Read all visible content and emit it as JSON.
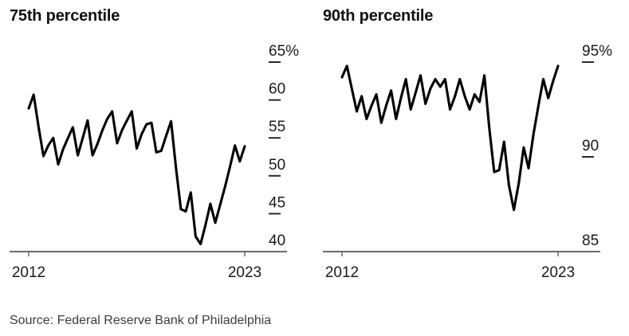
{
  "figure": {
    "source": "Source: Federal Reserve Bank of Philadelphia"
  },
  "colors": {
    "line": "#000000",
    "axis": "#6b6b6b",
    "tick_dash": "#2b2b2b",
    "label": "#1a1a1a",
    "title": "#111111",
    "source_text": "#3c3c3c"
  },
  "chart_data": [
    {
      "type": "line",
      "title": "75th percentile",
      "x_tick_labels": [
        "2012",
        "2023"
      ],
      "ylim": [
        40,
        65
      ],
      "y_ticks": [
        {
          "label": "65%",
          "value": 65
        },
        {
          "label": "60",
          "value": 60
        },
        {
          "label": "55",
          "value": 55
        },
        {
          "label": "50",
          "value": 50
        },
        {
          "label": "45",
          "value": 45
        },
        {
          "label": "40",
          "value": 40
        }
      ],
      "values": [
        58.9,
        60.7,
        56.5,
        52.6,
        54.0,
        55.0,
        51.5,
        53.5,
        55.0,
        56.4,
        52.7,
        55.0,
        57.3,
        52.7,
        54.2,
        56.0,
        57.5,
        58.5,
        54.3,
        56.0,
        57.3,
        58.5,
        53.6,
        55.5,
        56.8,
        57.0,
        53.1,
        53.3,
        55.3,
        57.2,
        51.0,
        45.6,
        45.3,
        47.8,
        42.0,
        41.0,
        43.5,
        46.3,
        43.8,
        46.2,
        48.6,
        51.2,
        54.0,
        51.9,
        53.9
      ]
    },
    {
      "type": "line",
      "title": "90th percentile",
      "x_tick_labels": [
        "2012",
        "2023"
      ],
      "ylim": [
        85,
        95
      ],
      "y_ticks": [
        {
          "label": "95%",
          "value": 95
        },
        {
          "label": "90",
          "value": 90
        },
        {
          "label": "85",
          "value": 85
        }
      ],
      "values": [
        94.2,
        94.8,
        93.6,
        92.4,
        93.2,
        92.0,
        92.7,
        93.3,
        91.8,
        92.7,
        93.5,
        92.0,
        93.1,
        94.1,
        92.5,
        93.4,
        94.3,
        92.8,
        93.6,
        94.1,
        93.7,
        94.1,
        92.5,
        93.2,
        94.1,
        93.2,
        92.5,
        93.3,
        92.9,
        94.3,
        91.5,
        89.2,
        89.3,
        90.8,
        88.5,
        87.2,
        88.6,
        90.5,
        89.4,
        91.2,
        92.7,
        94.1,
        93.1,
        94.0,
        94.8
      ]
    }
  ]
}
